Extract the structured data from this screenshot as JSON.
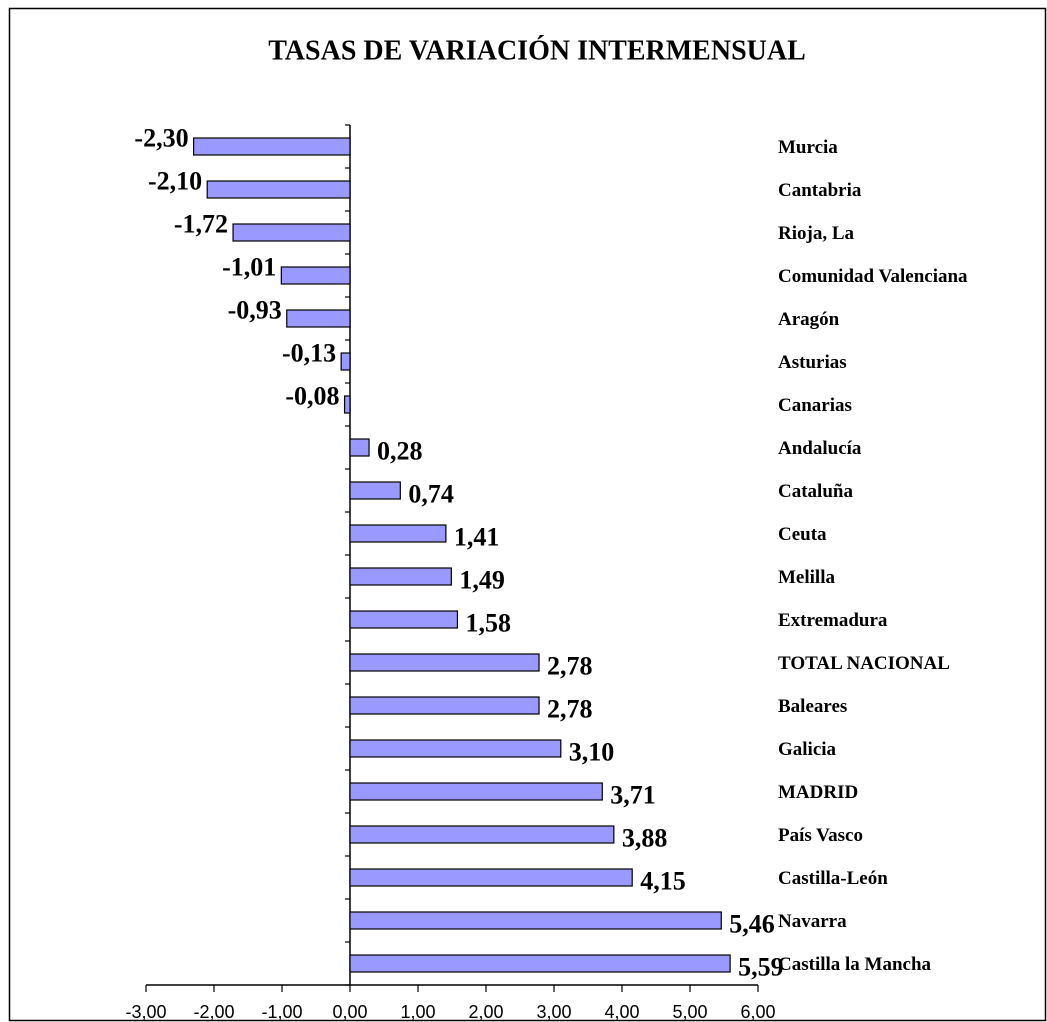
{
  "chart_data": {
    "type": "bar",
    "orientation": "horizontal",
    "title": "TASAS DE VARIACIÓN INTERMENSUAL",
    "categories": [
      "Murcia",
      "Cantabria",
      "Rioja, La",
      "Comunidad Valenciana",
      "Aragón",
      "Asturias",
      "Canarias",
      "Andalucía",
      "Cataluña",
      "Ceuta",
      "Melilla",
      "Extremadura",
      "TOTAL NACIONAL",
      "Baleares",
      "Galicia",
      "MADRID",
      "País Vasco",
      "Castilla-León",
      "Navarra",
      "Castilla la Mancha"
    ],
    "values": [
      -2.3,
      -2.1,
      -1.72,
      -1.01,
      -0.93,
      -0.13,
      -0.08,
      0.28,
      0.74,
      1.41,
      1.49,
      1.58,
      2.78,
      2.78,
      3.1,
      3.71,
      3.88,
      4.15,
      5.46,
      5.59
    ],
    "value_labels": [
      "-2,30",
      "-2,10",
      "-1,72",
      "-1,01",
      "-0,93",
      "-0,13",
      "-0,08",
      "0,28",
      "0,74",
      "1,41",
      "1,49",
      "1,58",
      "2,78",
      "2,78",
      "3,10",
      "3,71",
      "3,88",
      "4,15",
      "5,46",
      "5,59"
    ],
    "color": "#9999ff",
    "xlim": [
      -3,
      6
    ],
    "xticks": [
      {
        "value": -3,
        "label": "-3,00"
      },
      {
        "value": -2,
        "label": "-2,00"
      },
      {
        "value": -1,
        "label": "-1,00"
      },
      {
        "value": 0,
        "label": "0,00"
      },
      {
        "value": 1,
        "label": "1,00"
      },
      {
        "value": 2,
        "label": "2,00"
      },
      {
        "value": 3,
        "label": "3,00"
      },
      {
        "value": 4,
        "label": "4,00"
      },
      {
        "value": 5,
        "label": "5,00"
      },
      {
        "value": 6,
        "label": "6,00"
      }
    ],
    "grid": false
  }
}
